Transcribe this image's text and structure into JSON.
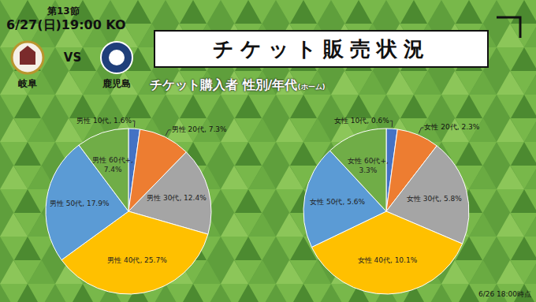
{
  "header": {
    "round": "第13節",
    "kickoff": "6/27(日)19:00 KO",
    "home": "岐阜",
    "vs": "VS",
    "away": "鹿児島",
    "title": "チケット販売状況",
    "subtitle": "チケット購入者 性別/年代",
    "subtitle_note": "(ホーム)",
    "as_of": "6/26 18:00時点"
  },
  "chart_data": [
    {
      "type": "pie",
      "categories": [
        "男性 10代",
        "男性 20代",
        "男性 30代",
        "男性 40代",
        "男性 50代",
        "男性 60代+"
      ],
      "values": [
        1.6,
        7.3,
        12.4,
        25.7,
        17.9,
        7.4
      ],
      "value_labels": [
        "男性 10代, 1.6%",
        "男性 20代, 7.3%",
        "男性 30代, 12.4%",
        "男性 40代, 25.7%",
        "男性 50代, 17.9%",
        "男性 60代+, 7.4%"
      ],
      "colors": [
        "#4472c4",
        "#ed7d31",
        "#a5a5a5",
        "#ffc000",
        "#5b9bd5",
        "#70ad47"
      ],
      "data_labels": true
    },
    {
      "type": "pie",
      "categories": [
        "女性 10代",
        "女性 20代",
        "女性 30代",
        "女性 40代",
        "女性 50代",
        "女性 60代+"
      ],
      "values": [
        0.6,
        2.3,
        5.8,
        10.1,
        5.6,
        3.3
      ],
      "value_labels": [
        "女性 10代, 0.6%",
        "女性 20代, 2.3%",
        "女性 30代, 5.8%",
        "女性 40代, 10.1%",
        "女性 50代, 5.6%",
        "女性 60代+, 3.3%"
      ],
      "colors": [
        "#4472c4",
        "#ed7d31",
        "#a5a5a5",
        "#ffc000",
        "#5b9bd5",
        "#70ad47"
      ],
      "data_labels": true
    }
  ]
}
